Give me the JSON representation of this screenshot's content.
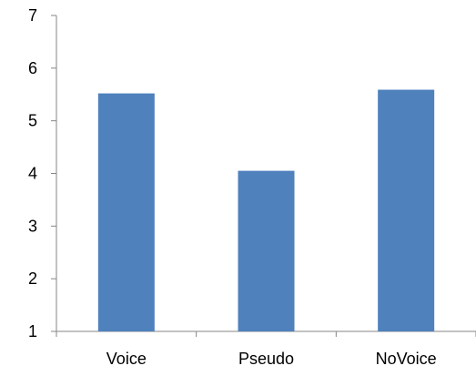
{
  "chart_data": {
    "type": "bar",
    "title": "",
    "xlabel": "",
    "ylabel": "",
    "categories": [
      "Voice",
      "Pseudo",
      "NoVoice"
    ],
    "values": [
      5.52,
      4.05,
      5.59
    ],
    "ylim": [
      1,
      7
    ],
    "yticks": [
      "1",
      "2",
      "3",
      "4",
      "5",
      "6",
      "7"
    ],
    "grid": false,
    "legend": "none",
    "bar_color": "#4F81BD",
    "axis_color": "#868686"
  }
}
